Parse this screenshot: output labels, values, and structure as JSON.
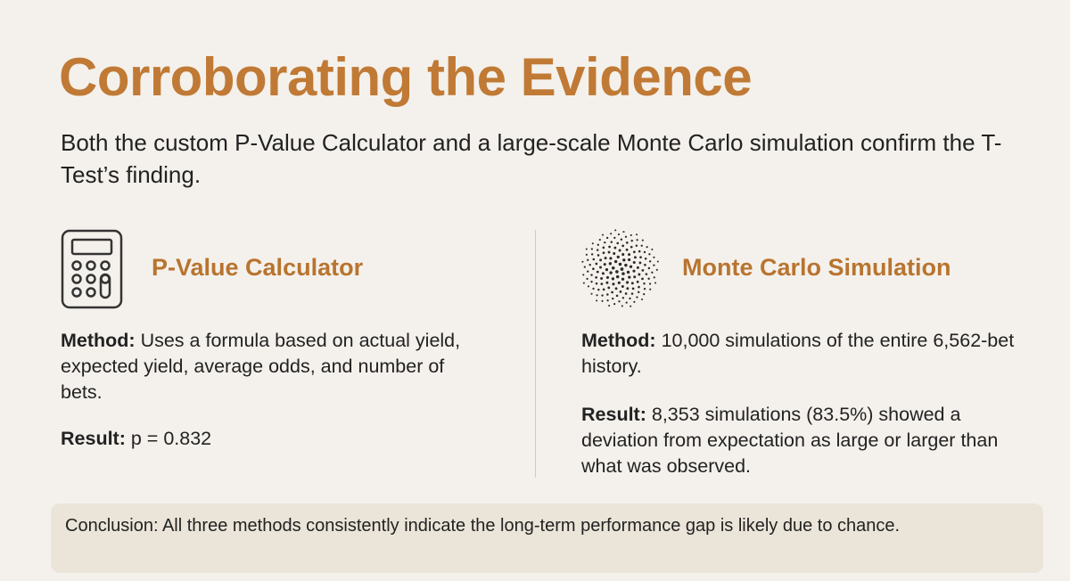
{
  "header": {
    "title": "Corroborating the Evidence",
    "subtitle": "Both the custom P-Value Calculator and a large-scale Monte Carlo simulation confirm the T-Test’s finding."
  },
  "sections": [
    {
      "heading": "P-Value Calculator",
      "method_label": "Method:",
      "method_text": "Uses a formula based on actual yield, expected yield, average odds, and number of bets.",
      "result_label": "Result:",
      "result_text": "p = 0.832"
    },
    {
      "heading": "Monte Carlo Simulation",
      "method_label": "Method:",
      "method_text": "10,000 simulations of the entire 6,562-bet history.",
      "result_label": "Result:",
      "result_text": "8,353 simulations (83.5%) showed a deviation from expectation as large or larger than what was observed."
    }
  ],
  "conclusion": "Conclusion: All three methods consistently indicate the long-term performance gap is likely due to chance."
}
